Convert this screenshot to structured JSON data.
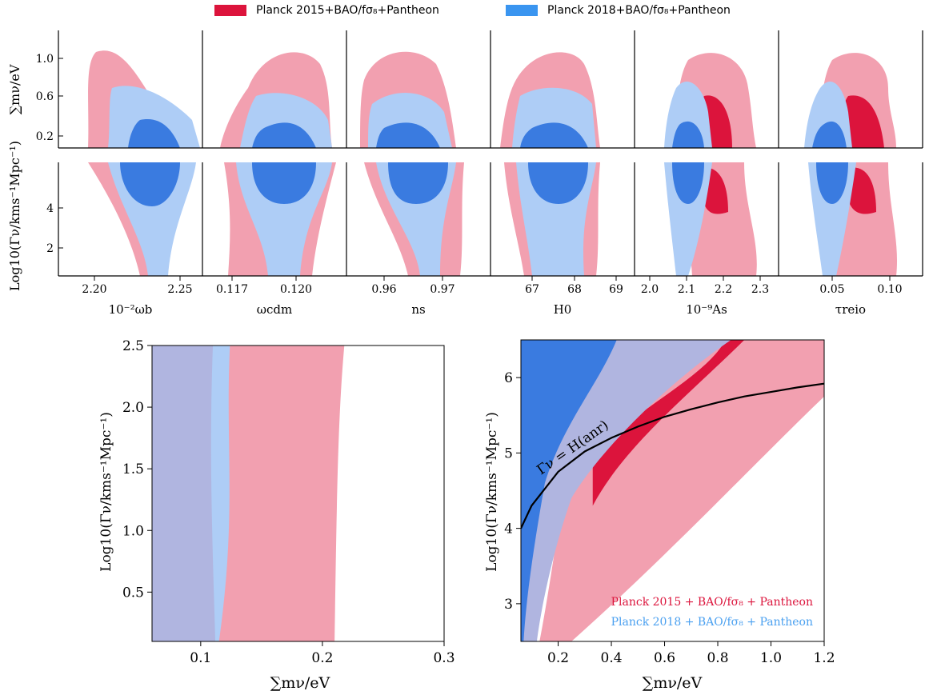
{
  "legend": {
    "item1": {
      "label": "Planck 2015+BAO/fσ₈+Pantheon",
      "color": "#dc143c"
    },
    "item2": {
      "label": "Planck 2018+BAO/fσ₈+Pantheon",
      "color": "#1e90ff"
    }
  },
  "colors": {
    "red_dark": "#dc143c",
    "red_light": "#f2a0b0",
    "blue_dark": "#3a7be0",
    "blue_light": "#aecdf6",
    "overlap_light": "#b0b5e0"
  },
  "chart_data": [
    {
      "type": "contour-grid",
      "row_ylabels": [
        "∑mν/eV",
        "Log10(Γν/kms⁻¹Mpc⁻¹)"
      ],
      "row_yticks": [
        [
          "0.2",
          "0.6",
          "1.0"
        ],
        [
          "2",
          "4"
        ]
      ],
      "columns": [
        {
          "xlabel": "10⁻²ωb",
          "xticks": [
            "2.20",
            "2.25"
          ]
        },
        {
          "xlabel": "ωcdm",
          "xticks": [
            "0.117",
            "0.120"
          ]
        },
        {
          "xlabel": "ns",
          "xticks": [
            "0.96",
            "0.97"
          ]
        },
        {
          "xlabel": "H0",
          "xticks": [
            "67",
            "68",
            "69"
          ]
        },
        {
          "xlabel": "10⁻⁹As",
          "xticks": [
            "2.0",
            "2.1",
            "2.2",
            "2.3"
          ]
        },
        {
          "xlabel": "τreio",
          "xticks": [
            "0.05",
            "0.10"
          ]
        }
      ],
      "series": [
        {
          "name": "Planck 2015+BAO/fσ₈+Pantheon"
        },
        {
          "name": "Planck 2018+BAO/fσ₈+Pantheon"
        }
      ]
    },
    {
      "type": "area",
      "xlabel": "∑mν/eV",
      "ylabel": "Log10(Γν/kms⁻¹Mpc⁻¹)",
      "xlim": [
        0.06,
        0.3
      ],
      "ylim": [
        0.1,
        2.5
      ],
      "xticks": [
        "0.1",
        "0.2",
        "0.3"
      ],
      "yticks": [
        "0.5",
        "1.0",
        "1.5",
        "2.0",
        "2.5"
      ],
      "series": [
        {
          "name": "Planck 2015+BAO/fσ₈+Pantheon",
          "upper_mnu": 0.21
        },
        {
          "name": "Planck 2018+BAO/fσ₈+Pantheon",
          "upper_mnu": 0.112
        }
      ]
    },
    {
      "type": "area",
      "xlabel": "∑mν/eV",
      "ylabel": "Log10(Γν/kms⁻¹Mpc⁻¹)",
      "xlim": [
        0.06,
        1.2
      ],
      "ylim": [
        2.5,
        6.5
      ],
      "xticks": [
        "0.2",
        "0.4",
        "0.6",
        "0.8",
        "1.0",
        "1.2"
      ],
      "yticks": [
        "3",
        "4",
        "5",
        "6"
      ],
      "curve_label": "Γν = H(anr)",
      "curve": {
        "x": [
          0.06,
          0.1,
          0.2,
          0.3,
          0.4,
          0.5,
          0.6,
          0.7,
          0.8,
          0.9,
          1.0,
          1.1,
          1.2
        ],
        "y": [
          4.0,
          4.3,
          4.75,
          5.02,
          5.2,
          5.35,
          5.48,
          5.58,
          5.67,
          5.75,
          5.81,
          5.87,
          5.92
        ]
      },
      "annotations": [
        {
          "text": "Planck 2015 + BAO/fσ₈ + Pantheon",
          "color": "#dc143c"
        },
        {
          "text": "Planck 2018 + BAO/fσ₈ + Pantheon",
          "color": "#4aa0f0"
        }
      ]
    }
  ]
}
